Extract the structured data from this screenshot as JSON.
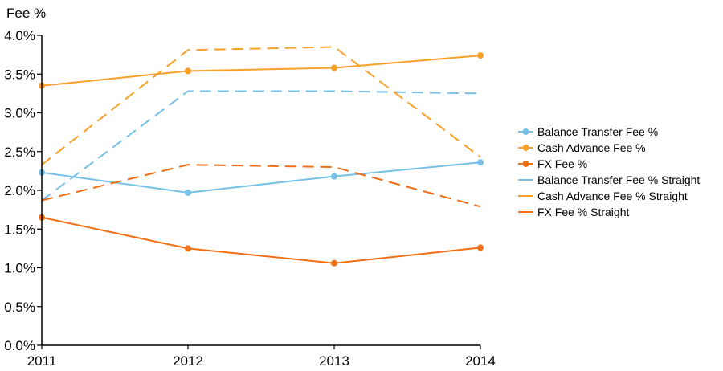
{
  "chart_data": {
    "type": "line",
    "title": "",
    "xlabel": "",
    "ylabel": "Fee %",
    "x": [
      "2011",
      "2012",
      "2013",
      "2014"
    ],
    "y_ticks": [
      "0.0%",
      "0.5%",
      "1.0%",
      "1.5%",
      "2.0%",
      "2.5%",
      "3.0%",
      "3.5%",
      "4.0%"
    ],
    "ylim": [
      0,
      4.0
    ],
    "grid": false,
    "legend_position": "right",
    "series": [
      {
        "name": "Balance Transfer Fee %",
        "style": "solid-markers",
        "color": "#76c0e8",
        "values": [
          2.23,
          1.97,
          2.18,
          2.36
        ]
      },
      {
        "name": "Cash Advance Fee %",
        "style": "solid-markers",
        "color": "#f7a128",
        "values": [
          3.35,
          3.54,
          3.58,
          3.74
        ]
      },
      {
        "name": "FX Fee %",
        "style": "solid-markers",
        "color": "#f07018",
        "values": [
          1.65,
          1.25,
          1.06,
          1.26
        ]
      },
      {
        "name": "Balance Transfer Fee % Straight",
        "style": "dashed",
        "color": "#76c0e8",
        "values": [
          1.87,
          3.28,
          3.28,
          3.25
        ]
      },
      {
        "name": "Cash Advance Fee % Straight",
        "style": "dashed",
        "color": "#f7a128",
        "values": [
          2.33,
          3.81,
          3.85,
          2.43
        ]
      },
      {
        "name": "FX Fee % Straight",
        "style": "dashed",
        "color": "#f07018",
        "values": [
          1.87,
          2.33,
          2.3,
          1.79
        ]
      }
    ]
  }
}
